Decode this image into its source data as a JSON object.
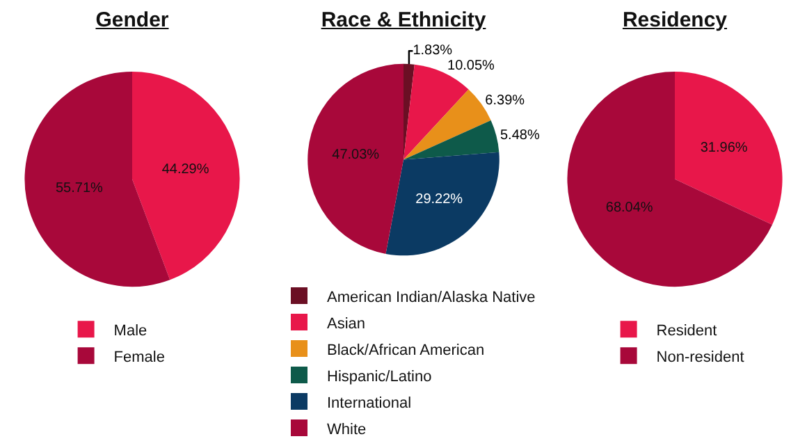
{
  "chart_data": [
    {
      "type": "pie",
      "title": "Gender",
      "categories": [
        "Male",
        "Female"
      ],
      "values": [
        44.29,
        55.71
      ],
      "colors": [
        "#e8174a",
        "#a8083a"
      ],
      "value_labels": [
        "44.29%",
        "55.71%"
      ],
      "legend": "bottom"
    },
    {
      "type": "pie",
      "title": "Race & Ethnicity",
      "categories": [
        "American Indian/Alaska Native",
        "Asian",
        "Black/African American",
        "Hispanic/Latino",
        "International",
        "White"
      ],
      "values": [
        1.83,
        10.05,
        6.39,
        5.48,
        29.22,
        47.03
      ],
      "colors": [
        "#6b0f24",
        "#e8174a",
        "#e8901a",
        "#0e5a4a",
        "#0b3a63",
        "#a8083a"
      ],
      "value_labels": [
        "1.83%",
        "10.05%",
        "6.39%",
        "5.48%",
        "29.22%",
        "47.03%"
      ],
      "legend": "bottom"
    },
    {
      "type": "pie",
      "title": "Residency",
      "categories": [
        "Resident",
        "Non-resident"
      ],
      "values": [
        31.96,
        68.04
      ],
      "colors": [
        "#e8174a",
        "#a8083a"
      ],
      "value_labels": [
        "31.96%",
        "68.04%"
      ],
      "legend": "bottom"
    }
  ]
}
